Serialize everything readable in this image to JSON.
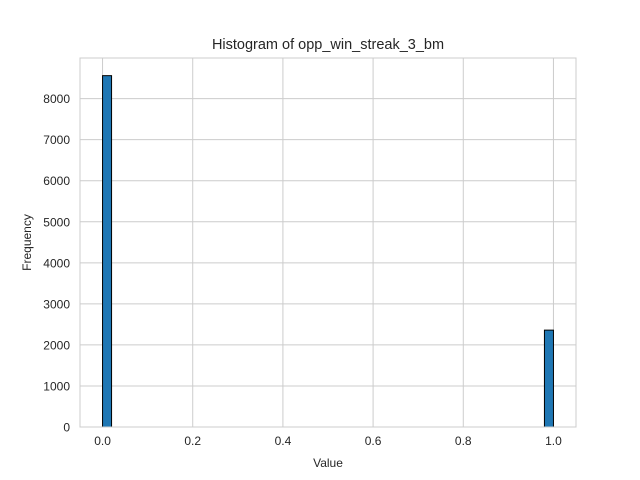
{
  "chart_data": {
    "type": "bar",
    "title": "Histogram of opp_win_streak_3_bm",
    "xlabel": "Value",
    "ylabel": "Frequency",
    "xlim": [
      -0.05,
      1.05
    ],
    "ylim": [
      0,
      8990
    ],
    "xticks": [
      0.0,
      0.2,
      0.4,
      0.6,
      0.8,
      1.0
    ],
    "xtick_labels": [
      "0.0",
      "0.2",
      "0.4",
      "0.6",
      "0.8",
      "1.0"
    ],
    "yticks": [
      0,
      1000,
      2000,
      3000,
      4000,
      5000,
      6000,
      7000,
      8000
    ],
    "ytick_labels": [
      "0",
      "1000",
      "2000",
      "3000",
      "4000",
      "5000",
      "6000",
      "7000",
      "8000"
    ],
    "grid": true,
    "bins": [
      {
        "start": 0.0,
        "end": 0.02,
        "count": 8560
      },
      {
        "start": 0.98,
        "end": 1.0,
        "count": 2360
      }
    ],
    "colors": {
      "bar_fill": "#1f77b4",
      "bar_edge": "#000000",
      "grid": "#cccccc",
      "spine": "#cccccc"
    }
  }
}
